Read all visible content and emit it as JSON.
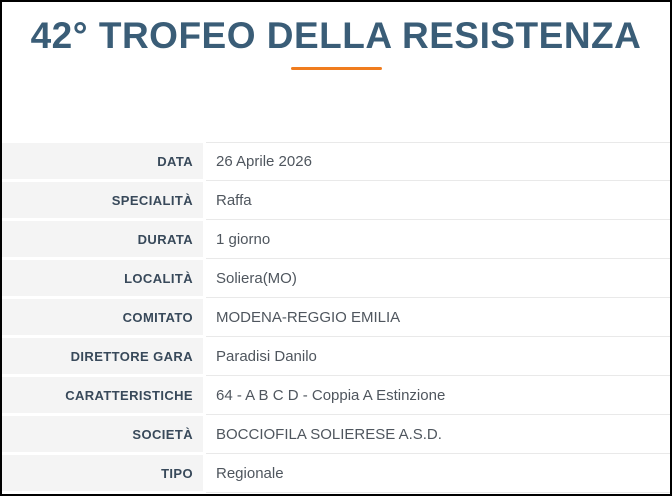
{
  "header": {
    "title": "42° TROFEO DELLA RESISTENZA"
  },
  "theme": {
    "accent_orange": "#f07c1e",
    "title_blue": "#3a5d77",
    "label_color": "#38495a",
    "value_color": "#4f565e",
    "label_bg": "#f4f4f4",
    "row_line": "#e9e9e9",
    "page_border": "#000000"
  },
  "details": {
    "rows": [
      {
        "label": "DATA",
        "value": "26 Aprile 2026"
      },
      {
        "label": "SPECIALITÀ",
        "value": "Raffa"
      },
      {
        "label": "DURATA",
        "value": "1 giorno"
      },
      {
        "label": "LOCALITÀ",
        "value": "Soliera(MO)"
      },
      {
        "label": "COMITATO",
        "value": "MODENA-REGGIO EMILIA"
      },
      {
        "label": "DIRETTORE GARA",
        "value": "Paradisi Danilo"
      },
      {
        "label": "CARATTERISTICHE",
        "value": "64 - A B C D - Coppia A Estinzione"
      },
      {
        "label": "SOCIETÀ",
        "value": "BOCCIOFILA SOLIERESE A.S.D."
      },
      {
        "label": "TIPO",
        "value": "Regionale"
      }
    ]
  }
}
